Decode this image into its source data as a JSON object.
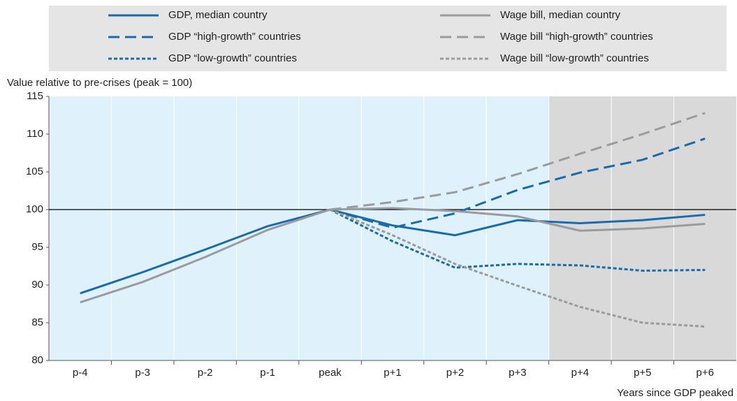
{
  "chart_data": {
    "type": "line",
    "y_label": "Value relative to pre-crises (peak = 100)",
    "x_label": "Years since GDP peaked",
    "categories": [
      "p-4",
      "p-3",
      "p-2",
      "p-1",
      "peak",
      "p+1",
      "p+2",
      "p+3",
      "p+4",
      "p+5",
      "p+6"
    ],
    "ylim": [
      80,
      115
    ],
    "yticks": [
      80,
      85,
      90,
      95,
      100,
      105,
      110,
      115
    ],
    "series": [
      {
        "name": "GDP, median country",
        "color": "#1a6aae",
        "dash": "solid",
        "values": [
          88.9,
          91.7,
          94.7,
          97.8,
          100,
          97.9,
          96.6,
          98.6,
          98.2,
          98.6,
          99.3
        ]
      },
      {
        "name": "GDP “high-growth” countries",
        "color": "#1a6aae",
        "dash": "long",
        "values": [
          null,
          null,
          null,
          null,
          100,
          97.6,
          99.5,
          102.6,
          104.9,
          106.6,
          109.4
        ]
      },
      {
        "name": "GDP “low-growth” countries",
        "color": "#1a6aae",
        "dash": "short",
        "values": [
          null,
          null,
          null,
          null,
          100,
          95.8,
          92.3,
          92.8,
          92.6,
          91.9,
          92.0
        ]
      },
      {
        "name": "Wage bill, median country",
        "color": "#9a9b9d",
        "dash": "solid",
        "values": [
          87.7,
          90.4,
          93.7,
          97.3,
          100,
          100.2,
          99.8,
          99.1,
          97.2,
          97.5,
          98.1
        ]
      },
      {
        "name": "Wage bill “high-growth” countries",
        "color": "#9a9b9d",
        "dash": "long",
        "values": [
          null,
          null,
          null,
          null,
          100,
          101.0,
          102.3,
          104.7,
          107.4,
          110.0,
          112.8
        ]
      },
      {
        "name": "Wage bill “low-growth” countries",
        "color": "#9a9b9d",
        "dash": "short",
        "values": [
          null,
          null,
          null,
          null,
          100,
          96.6,
          92.8,
          89.9,
          87.1,
          85.0,
          84.5
        ]
      }
    ],
    "reference_line": 100
  }
}
